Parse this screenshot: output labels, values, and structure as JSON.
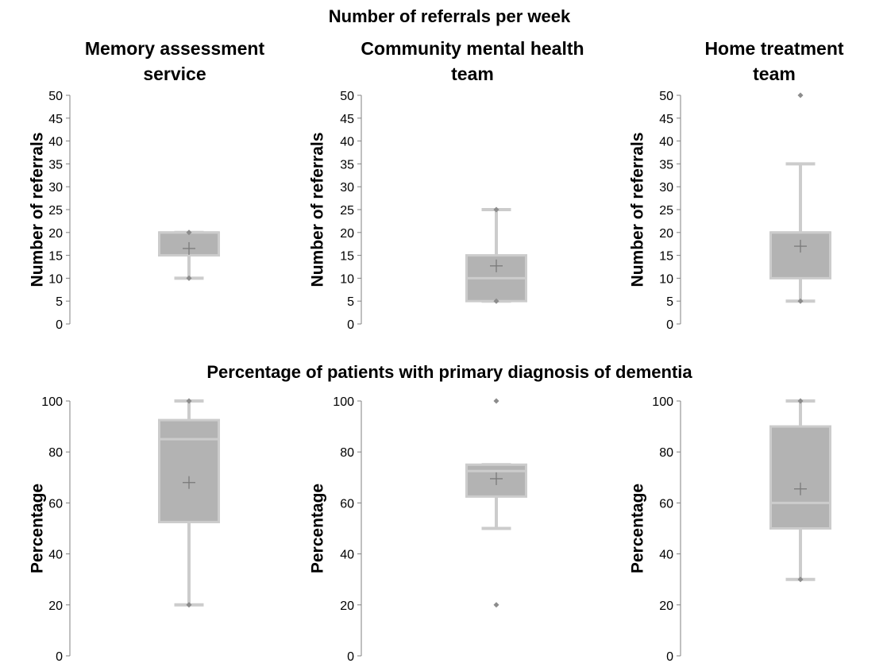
{
  "figure": {
    "row_titles": [
      "Number of referrals per week",
      "Percentage of patients with primary diagnosis of dementia"
    ],
    "column_titles": [
      [
        "Memory assessment",
        "service"
      ],
      [
        "Community mental health",
        "team"
      ],
      [
        "Home treatment",
        "team"
      ]
    ]
  },
  "colors": {
    "box_fill": "#b3b3b3",
    "box_edge": "#cccccc",
    "whisker": "#cccccc",
    "outlier": "#8c8c8c",
    "mean": "#7a7a7a",
    "axis": "#808080"
  },
  "chart_data": [
    {
      "type": "box",
      "row": 0,
      "col": 0,
      "ylabel": "Number of referrals",
      "ylim": [
        0,
        50
      ],
      "yticks": [
        0,
        5,
        10,
        15,
        20,
        25,
        30,
        35,
        40,
        45,
        50
      ],
      "box": {
        "whisker_low": 10,
        "q1": 15,
        "median": 20,
        "q3": 20,
        "whisker_high": 20,
        "mean": 16.5
      },
      "outliers": [
        10,
        20
      ]
    },
    {
      "type": "box",
      "row": 0,
      "col": 1,
      "ylabel": "Number of referrals",
      "ylim": [
        0,
        50
      ],
      "yticks": [
        0,
        5,
        10,
        15,
        20,
        25,
        30,
        35,
        40,
        45,
        50
      ],
      "box": {
        "whisker_low": 5,
        "q1": 5,
        "median": 10,
        "q3": 15,
        "whisker_high": 25,
        "mean": 12.7
      },
      "outliers": [
        5,
        25
      ]
    },
    {
      "type": "box",
      "row": 0,
      "col": 2,
      "ylabel": "Number of referrals",
      "ylim": [
        0,
        50
      ],
      "yticks": [
        0,
        5,
        10,
        15,
        20,
        25,
        30,
        35,
        40,
        45,
        50
      ],
      "box": {
        "whisker_low": 5,
        "q1": 10,
        "median": 20,
        "q3": 20,
        "whisker_high": 35,
        "mean": 17
      },
      "outliers": [
        5,
        50
      ]
    },
    {
      "type": "box",
      "row": 1,
      "col": 0,
      "ylabel": "Percentage",
      "ylim": [
        0,
        100
      ],
      "yticks": [
        0,
        20,
        40,
        60,
        80,
        100
      ],
      "box": {
        "whisker_low": 20,
        "q1": 52.5,
        "median": 85,
        "q3": 92.5,
        "whisker_high": 100,
        "mean": 68
      },
      "outliers": [
        20,
        100
      ]
    },
    {
      "type": "box",
      "row": 1,
      "col": 1,
      "ylabel": "Percentage",
      "ylim": [
        0,
        100
      ],
      "yticks": [
        0,
        20,
        40,
        60,
        80,
        100
      ],
      "box": {
        "whisker_low": 50,
        "q1": 62.5,
        "median": 72.5,
        "q3": 75,
        "whisker_high": 75,
        "mean": 69.5
      },
      "outliers": [
        20,
        100
      ]
    },
    {
      "type": "box",
      "row": 1,
      "col": 2,
      "ylabel": "Percentage",
      "ylim": [
        0,
        100
      ],
      "yticks": [
        0,
        20,
        40,
        60,
        80,
        100
      ],
      "box": {
        "whisker_low": 30,
        "q1": 50,
        "median": 60,
        "q3": 90,
        "whisker_high": 100,
        "mean": 65.5
      },
      "outliers": [
        30,
        100
      ]
    }
  ]
}
